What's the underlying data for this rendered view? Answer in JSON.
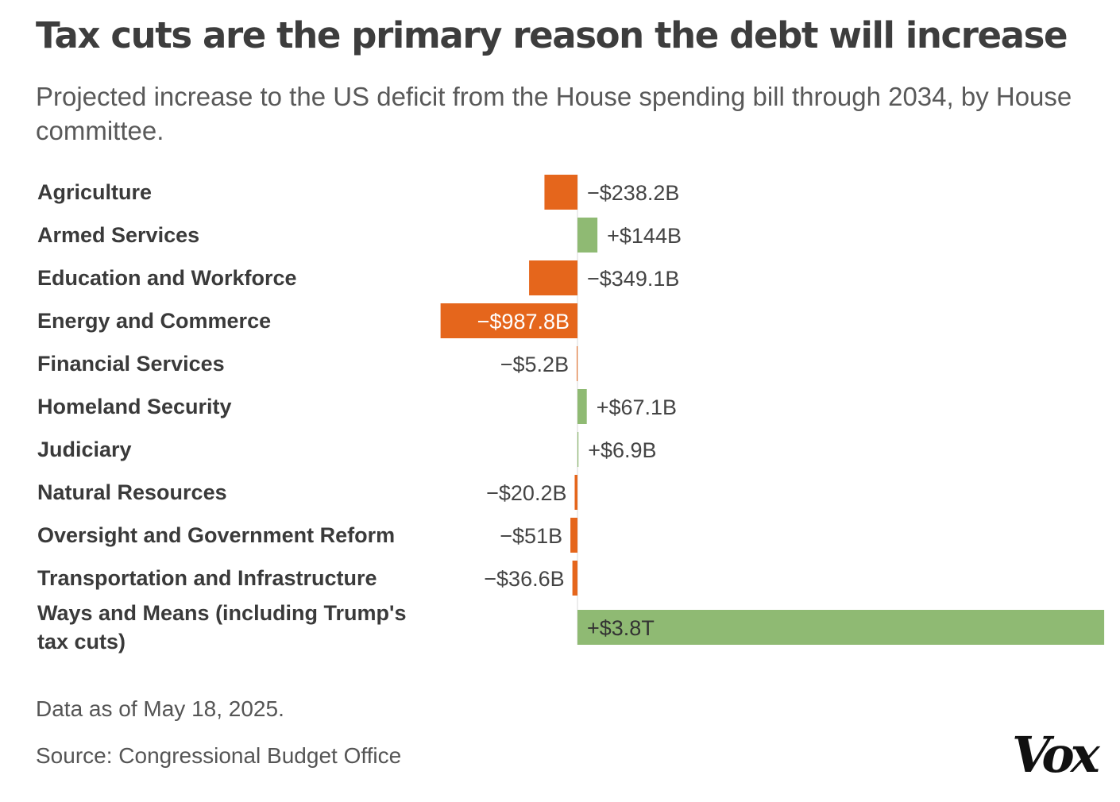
{
  "header": {
    "title": "Tax cuts are the primary reason the debt will increase",
    "subtitle": "Projected increase to the US deficit from the House spending bill through 2034, by House committee."
  },
  "footer": {
    "data_note": "Data as of May 18, 2025.",
    "source": "Source: Congressional Budget Office"
  },
  "brand": {
    "logo_text": "Vox"
  },
  "colors": {
    "negative": "#e5661c",
    "positive": "#8fba73",
    "text": "#333333",
    "label_on_bar": "#ffffff"
  },
  "chart_data": {
    "type": "bar",
    "orientation": "horizontal",
    "title": "Tax cuts are the primary reason the debt will increase",
    "subtitle": "Projected increase to the US deficit from the House spending bill through 2034, by House committee.",
    "unit": "billions of US dollars",
    "xlabel": "",
    "ylabel": "",
    "xlim": [
      -1000,
      3800
    ],
    "grid": false,
    "categories": [
      [
        "Agriculture"
      ],
      [
        "Armed Services"
      ],
      [
        "Education and Workforce"
      ],
      [
        "Energy and Commerce"
      ],
      [
        "Financial Services"
      ],
      [
        "Homeland Security"
      ],
      [
        "Judiciary"
      ],
      [
        "Natural Resources"
      ],
      [
        "Oversight and Government Reform"
      ],
      [
        "Transportation and Infrastructure"
      ],
      [
        "Ways and Means (including Trump's",
        "tax cuts)"
      ]
    ],
    "values": [
      -238.2,
      144,
      -349.1,
      -987.8,
      -5.2,
      67.1,
      6.9,
      -20.2,
      -51,
      -36.6,
      3800
    ],
    "value_labels": [
      "−$238.2B",
      "+$144B",
      "−$349.1B",
      "−$987.8B",
      "−$5.2B",
      "+$67.1B",
      "+$6.9B",
      "−$20.2B",
      "−$51B",
      "−$36.6B",
      "+$3.8T"
    ],
    "label_inside_bar": [
      false,
      false,
      false,
      true,
      false,
      false,
      false,
      false,
      false,
      false,
      true
    ]
  }
}
